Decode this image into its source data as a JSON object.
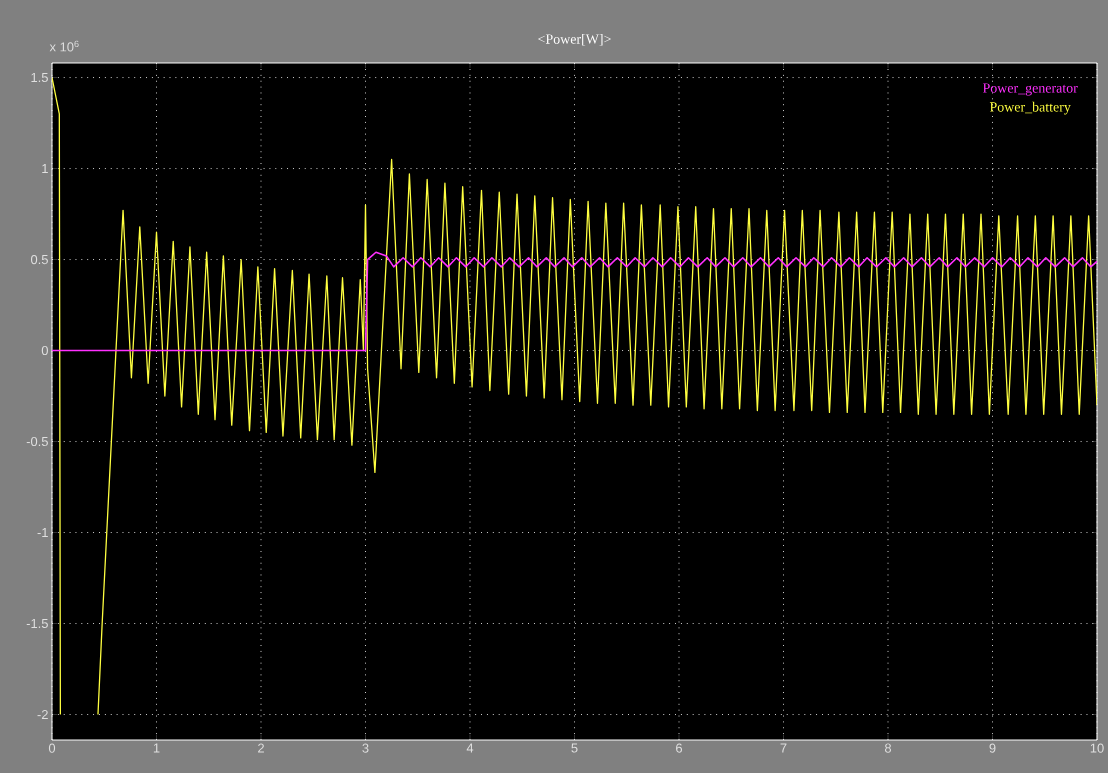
{
  "chart_data": {
    "type": "line",
    "title": "<Power[W]>",
    "annotations": [
      "x 10$^{6}$"
    ],
    "xlim": [
      0,
      10
    ],
    "ylim": [
      -2.14,
      1.58
    ],
    "xticks": [
      0,
      1,
      2,
      3,
      4,
      5,
      6,
      7,
      8,
      9,
      10
    ],
    "yticks": [
      -2,
      -1.5,
      -1,
      -0.5,
      0,
      0.5,
      1,
      1.5
    ],
    "grid": true,
    "legend": "top right",
    "series": [
      {
        "name": "Power_battery",
        "color": "#ffff40",
        "x": [
          0,
          0.07,
          0.08,
          0.2,
          0.44,
          0.48,
          0.68,
          0.76,
          0.84,
          0.92,
          1.0,
          1.08,
          1.16,
          1.24,
          1.32,
          1.4,
          1.48,
          1.56,
          1.64,
          1.72,
          1.81,
          1.89,
          1.97,
          2.05,
          2.13,
          2.21,
          2.3,
          2.38,
          2.46,
          2.54,
          2.63,
          2.7,
          2.78,
          2.87,
          2.95,
          2.98,
          3.0,
          3.02,
          3.09,
          3.25,
          3.34,
          3.42,
          3.51,
          3.59,
          3.68,
          3.76,
          3.85,
          3.93,
          4.02,
          4.11,
          4.19,
          4.28,
          4.37,
          4.45,
          4.54,
          4.62,
          4.71,
          4.79,
          4.88,
          4.96,
          5.05,
          5.13,
          5.22,
          5.3,
          5.39,
          5.47,
          5.56,
          5.64,
          5.73,
          5.82,
          5.9,
          5.99,
          6.07,
          6.16,
          6.24,
          6.33,
          6.41,
          6.5,
          6.58,
          6.67,
          6.75,
          6.84,
          6.92,
          7.01,
          7.1,
          7.18,
          7.27,
          7.35,
          7.44,
          7.53,
          7.61,
          7.7,
          7.78,
          7.87,
          7.95,
          8.04,
          8.12,
          8.21,
          8.29,
          8.38,
          8.46,
          8.55,
          8.63,
          8.72,
          8.8,
          8.89,
          8.97,
          9.06,
          9.15,
          9.24,
          9.32,
          9.41,
          9.49,
          9.58,
          9.66,
          9.75,
          9.83,
          9.92,
          10
        ],
        "values": [
          1.5,
          1.3,
          -2.0,
          null,
          -2.0,
          -1.5,
          0.77,
          -0.15,
          0.68,
          -0.18,
          0.65,
          -0.25,
          0.6,
          -0.31,
          0.57,
          -0.35,
          0.54,
          -0.38,
          0.52,
          -0.41,
          0.5,
          -0.44,
          0.46,
          -0.45,
          0.45,
          -0.47,
          0.44,
          -0.48,
          0.42,
          -0.49,
          0.41,
          -0.49,
          0.4,
          -0.52,
          0.39,
          0.0,
          0.8,
          -0.1,
          -0.67,
          1.05,
          -0.1,
          0.97,
          -0.12,
          0.94,
          -0.15,
          0.92,
          -0.18,
          0.9,
          -0.2,
          0.88,
          -0.22,
          0.87,
          -0.24,
          0.86,
          -0.25,
          0.85,
          -0.26,
          0.84,
          -0.27,
          0.83,
          -0.28,
          0.82,
          -0.29,
          0.81,
          -0.29,
          0.81,
          -0.3,
          0.8,
          -0.3,
          0.8,
          -0.31,
          0.79,
          -0.31,
          0.79,
          -0.32,
          0.78,
          -0.32,
          0.78,
          -0.32,
          0.78,
          -0.33,
          0.77,
          -0.33,
          0.77,
          -0.33,
          0.77,
          -0.33,
          0.77,
          -0.34,
          0.76,
          -0.34,
          0.76,
          -0.34,
          0.76,
          -0.34,
          0.76,
          -0.34,
          0.75,
          -0.35,
          0.75,
          -0.35,
          0.75,
          -0.35,
          0.75,
          -0.35,
          0.75,
          -0.35,
          0.74,
          -0.35,
          0.74,
          -0.35,
          0.74,
          -0.35,
          0.74,
          -0.35,
          0.74,
          -0.35,
          0.74,
          -0.3
        ]
      },
      {
        "name": "Power_generator",
        "color": "#ff30ff",
        "x": [
          0,
          3.0,
          3.02,
          3.1,
          3.2,
          3.27,
          3.36,
          3.45,
          3.53,
          3.62,
          3.7,
          3.79,
          3.87,
          3.96,
          4.04,
          4.13,
          4.21,
          4.3,
          4.38,
          4.47,
          4.56,
          4.64,
          4.73,
          4.81,
          4.9,
          4.98,
          5.07,
          5.15,
          5.24,
          5.32,
          5.41,
          5.5,
          5.58,
          5.67,
          5.75,
          5.84,
          5.92,
          6.01,
          6.09,
          6.18,
          6.27,
          6.35,
          6.44,
          6.52,
          6.61,
          6.69,
          6.78,
          6.86,
          6.95,
          7.03,
          7.12,
          7.21,
          7.29,
          7.38,
          7.46,
          7.55,
          7.63,
          7.72,
          7.8,
          7.89,
          7.98,
          8.06,
          8.15,
          8.23,
          8.32,
          8.4,
          8.49,
          8.57,
          8.66,
          8.74,
          8.83,
          8.92,
          9.0,
          9.09,
          9.17,
          9.26,
          9.34,
          9.43,
          9.51,
          9.6,
          9.69,
          9.77,
          9.86,
          9.94,
          10
        ],
        "values": [
          0,
          0,
          0.5,
          0.54,
          0.52,
          0.46,
          0.51,
          0.46,
          0.51,
          0.46,
          0.51,
          0.46,
          0.51,
          0.46,
          0.51,
          0.46,
          0.51,
          0.46,
          0.51,
          0.46,
          0.51,
          0.46,
          0.51,
          0.46,
          0.51,
          0.46,
          0.51,
          0.46,
          0.51,
          0.46,
          0.51,
          0.46,
          0.51,
          0.46,
          0.51,
          0.46,
          0.51,
          0.46,
          0.51,
          0.46,
          0.51,
          0.46,
          0.51,
          0.46,
          0.51,
          0.46,
          0.51,
          0.46,
          0.51,
          0.46,
          0.51,
          0.46,
          0.51,
          0.46,
          0.51,
          0.46,
          0.51,
          0.46,
          0.51,
          0.46,
          0.51,
          0.46,
          0.51,
          0.46,
          0.51,
          0.46,
          0.51,
          0.46,
          0.51,
          0.46,
          0.51,
          0.46,
          0.51,
          0.46,
          0.51,
          0.46,
          0.51,
          0.46,
          0.51,
          0.46,
          0.51,
          0.46,
          0.51,
          0.46,
          0.49
        ]
      }
    ]
  }
}
